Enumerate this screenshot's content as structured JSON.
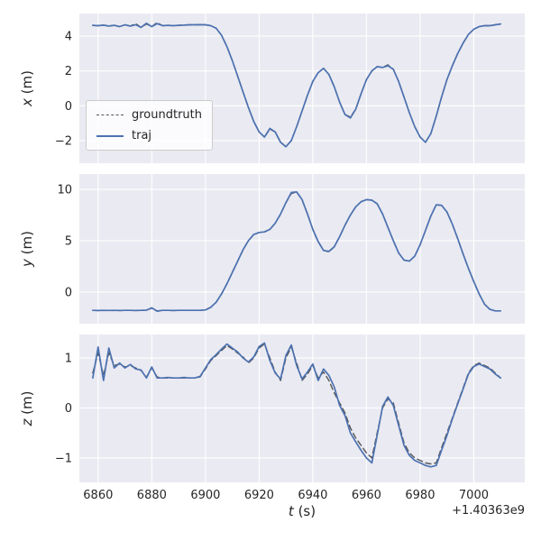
{
  "colors": {
    "axes_bg": "#eaeaf2",
    "grid": "#ffffff",
    "text": "#262626",
    "traj": "#4c72b0",
    "groundtruth": "#555555"
  },
  "legend": {
    "entries": [
      {
        "label": "groundtruth",
        "color": "#555555",
        "dash": true
      },
      {
        "label": "traj",
        "color": "#4c72b0",
        "dash": false
      }
    ]
  },
  "chart_data": {
    "type": "line",
    "title": "",
    "xlabel": "t (s)",
    "xlabel_var": "t",
    "xlabel_unit": " (s)",
    "offset_text": "+1.40363e9",
    "xlim": [
      6853,
      7019
    ],
    "xticks": [
      6860,
      6880,
      6900,
      6920,
      6940,
      6960,
      6980,
      7000
    ],
    "legend_position": "first subplot, center left",
    "grid": true,
    "x": [
      6858,
      6860,
      6862,
      6864,
      6866,
      6868,
      6870,
      6872,
      6874,
      6876,
      6878,
      6880,
      6882,
      6884,
      6886,
      6888,
      6890,
      6892,
      6894,
      6896,
      6898,
      6900,
      6902,
      6904,
      6906,
      6908,
      6910,
      6912,
      6914,
      6916,
      6918,
      6920,
      6922,
      6924,
      6926,
      6928,
      6930,
      6932,
      6934,
      6936,
      6938,
      6940,
      6942,
      6944,
      6946,
      6948,
      6950,
      6952,
      6954,
      6956,
      6958,
      6960,
      6962,
      6964,
      6966,
      6968,
      6970,
      6972,
      6974,
      6976,
      6978,
      6980,
      6982,
      6984,
      6986,
      6988,
      6990,
      6992,
      6994,
      6996,
      6998,
      7000,
      7002,
      7004,
      7006,
      7008,
      7010
    ],
    "subplots": [
      {
        "ylabel": "x (m)",
        "ylabel_var": "x",
        "ylabel_unit": " (m)",
        "ylim": [
          -3.3,
          5.3
        ],
        "yticks": [
          -2,
          0,
          2,
          4
        ],
        "series": [
          {
            "name": "groundtruth",
            "color": "#555555",
            "dash": true,
            "values": [
              4.62,
              4.6,
              4.63,
              4.58,
              4.62,
              4.55,
              4.65,
              4.58,
              4.72,
              4.5,
              4.7,
              4.55,
              4.78,
              4.6,
              4.62,
              4.6,
              4.62,
              4.63,
              4.65,
              4.65,
              4.66,
              4.65,
              4.6,
              4.45,
              4.05,
              3.4,
              2.6,
              1.7,
              0.8,
              -0.1,
              -0.9,
              -1.5,
              -1.8,
              -1.35,
              -1.5,
              -2.1,
              -2.35,
              -2.0,
              -1.2,
              -0.3,
              0.6,
              1.4,
              1.9,
              2.15,
              1.8,
              1.1,
              0.2,
              -0.5,
              -0.65,
              -0.2,
              0.7,
              1.5,
              2.0,
              2.25,
              2.2,
              2.35,
              2.1,
              1.4,
              0.5,
              -0.4,
              -1.2,
              -1.8,
              -2.1,
              -1.6,
              -0.6,
              0.5,
              1.5,
              2.3,
              3.0,
              3.6,
              4.1,
              4.4,
              4.55,
              4.6,
              4.6,
              4.65,
              4.7
            ]
          },
          {
            "name": "traj",
            "color": "#4c72b0",
            "dash": false,
            "values": [
              4.62,
              4.6,
              4.63,
              4.58,
              4.62,
              4.55,
              4.65,
              4.58,
              4.66,
              4.5,
              4.74,
              4.55,
              4.72,
              4.6,
              4.62,
              4.6,
              4.62,
              4.63,
              4.65,
              4.65,
              4.66,
              4.65,
              4.6,
              4.45,
              4.05,
              3.4,
              2.6,
              1.7,
              0.8,
              -0.1,
              -0.9,
              -1.5,
              -1.8,
              -1.3,
              -1.5,
              -2.1,
              -2.35,
              -2.0,
              -1.2,
              -0.3,
              0.6,
              1.4,
              1.9,
              2.15,
              1.8,
              1.1,
              0.2,
              -0.5,
              -0.7,
              -0.2,
              0.7,
              1.5,
              2.0,
              2.25,
              2.2,
              2.3,
              2.1,
              1.4,
              0.5,
              -0.4,
              -1.2,
              -1.8,
              -2.1,
              -1.6,
              -0.6,
              0.5,
              1.5,
              2.3,
              3.0,
              3.6,
              4.1,
              4.4,
              4.55,
              4.6,
              4.6,
              4.65,
              4.7
            ]
          }
        ]
      },
      {
        "ylabel": "y (m)",
        "ylabel_var": "y",
        "ylabel_unit": " (m)",
        "ylim": [
          -3.1,
          11.5
        ],
        "yticks": [
          0,
          5,
          10
        ],
        "series": [
          {
            "name": "groundtruth",
            "color": "#555555",
            "dash": true,
            "values": [
              -1.8,
              -1.82,
              -1.8,
              -1.81,
              -1.8,
              -1.82,
              -1.8,
              -1.8,
              -1.82,
              -1.8,
              -1.78,
              -1.6,
              -1.85,
              -1.8,
              -1.8,
              -1.82,
              -1.8,
              -1.8,
              -1.8,
              -1.8,
              -1.8,
              -1.75,
              -1.5,
              -1.0,
              -0.2,
              0.8,
              1.9,
              3.0,
              4.1,
              5.0,
              5.6,
              5.8,
              5.85,
              6.1,
              6.7,
              7.6,
              8.7,
              9.6,
              9.75,
              9.0,
              7.6,
              6.1,
              4.9,
              4.05,
              3.9,
              4.4,
              5.4,
              6.5,
              7.5,
              8.3,
              8.8,
              9.0,
              8.95,
              8.6,
              7.6,
              6.3,
              5.0,
              3.8,
              3.1,
              3.0,
              3.5,
              4.6,
              6.0,
              7.4,
              8.5,
              8.45,
              7.8,
              6.6,
              5.2,
              3.7,
              2.3,
              1.0,
              -0.2,
              -1.2,
              -1.7,
              -1.85,
              -1.85
            ]
          },
          {
            "name": "traj",
            "color": "#4c72b0",
            "dash": false,
            "values": [
              -1.8,
              -1.82,
              -1.8,
              -1.81,
              -1.8,
              -1.82,
              -1.8,
              -1.8,
              -1.82,
              -1.8,
              -1.78,
              -1.55,
              -1.88,
              -1.8,
              -1.8,
              -1.82,
              -1.8,
              -1.8,
              -1.8,
              -1.8,
              -1.8,
              -1.75,
              -1.5,
              -1.0,
              -0.2,
              0.8,
              1.9,
              3.0,
              4.1,
              5.0,
              5.6,
              5.8,
              5.85,
              6.1,
              6.7,
              7.6,
              8.7,
              9.7,
              9.75,
              9.0,
              7.6,
              6.1,
              4.9,
              4.05,
              3.95,
              4.4,
              5.4,
              6.5,
              7.5,
              8.3,
              8.8,
              9.0,
              8.95,
              8.6,
              7.6,
              6.3,
              5.0,
              3.8,
              3.1,
              3.0,
              3.5,
              4.6,
              6.0,
              7.4,
              8.5,
              8.45,
              7.8,
              6.6,
              5.2,
              3.7,
              2.3,
              1.0,
              -0.2,
              -1.2,
              -1.7,
              -1.85,
              -1.85
            ]
          }
        ]
      },
      {
        "ylabel": "z (m)",
        "ylabel_var": "z",
        "ylabel_unit": " (m)",
        "ylim": [
          -1.49,
          1.47
        ],
        "yticks": [
          -1,
          0,
          1
        ],
        "series": [
          {
            "name": "groundtruth",
            "color": "#555555",
            "dash": true,
            "values": [
              0.7,
              1.1,
              0.65,
              1.1,
              0.85,
              0.88,
              0.82,
              0.85,
              0.8,
              0.75,
              0.62,
              0.8,
              0.62,
              0.6,
              0.6,
              0.6,
              0.6,
              0.6,
              0.6,
              0.6,
              0.62,
              0.78,
              0.95,
              1.05,
              1.15,
              1.25,
              1.18,
              1.1,
              1.02,
              0.9,
              1.0,
              1.2,
              1.28,
              1.0,
              0.72,
              0.55,
              1.0,
              1.22,
              0.9,
              0.55,
              0.68,
              0.85,
              0.6,
              0.72,
              0.55,
              0.3,
              0.1,
              -0.1,
              -0.4,
              -0.6,
              -0.75,
              -0.9,
              -1.0,
              -0.5,
              0.0,
              0.18,
              0.1,
              -0.3,
              -0.7,
              -0.9,
              -1.0,
              -1.05,
              -1.1,
              -1.12,
              -1.1,
              -0.8,
              -0.5,
              -0.2,
              0.1,
              0.4,
              0.7,
              0.85,
              0.9,
              0.85,
              0.8,
              0.7,
              0.6
            ]
          },
          {
            "name": "traj",
            "color": "#4c72b0",
            "dash": false,
            "values": [
              0.6,
              1.22,
              0.55,
              1.2,
              0.8,
              0.9,
              0.8,
              0.87,
              0.78,
              0.76,
              0.6,
              0.82,
              0.6,
              0.6,
              0.61,
              0.6,
              0.6,
              0.61,
              0.6,
              0.6,
              0.63,
              0.8,
              0.97,
              1.07,
              1.18,
              1.28,
              1.2,
              1.12,
              1.0,
              0.92,
              1.02,
              1.23,
              1.3,
              0.95,
              0.7,
              0.58,
              1.05,
              1.26,
              0.85,
              0.58,
              0.72,
              0.88,
              0.55,
              0.78,
              0.65,
              0.42,
              0.05,
              -0.15,
              -0.5,
              -0.68,
              -0.85,
              -1.0,
              -1.1,
              -0.55,
              0.03,
              0.22,
              0.05,
              -0.35,
              -0.75,
              -0.95,
              -1.05,
              -1.1,
              -1.15,
              -1.18,
              -1.15,
              -0.85,
              -0.55,
              -0.22,
              0.08,
              0.38,
              0.68,
              0.83,
              0.88,
              0.83,
              0.78,
              0.68,
              0.6
            ]
          }
        ]
      }
    ]
  }
}
